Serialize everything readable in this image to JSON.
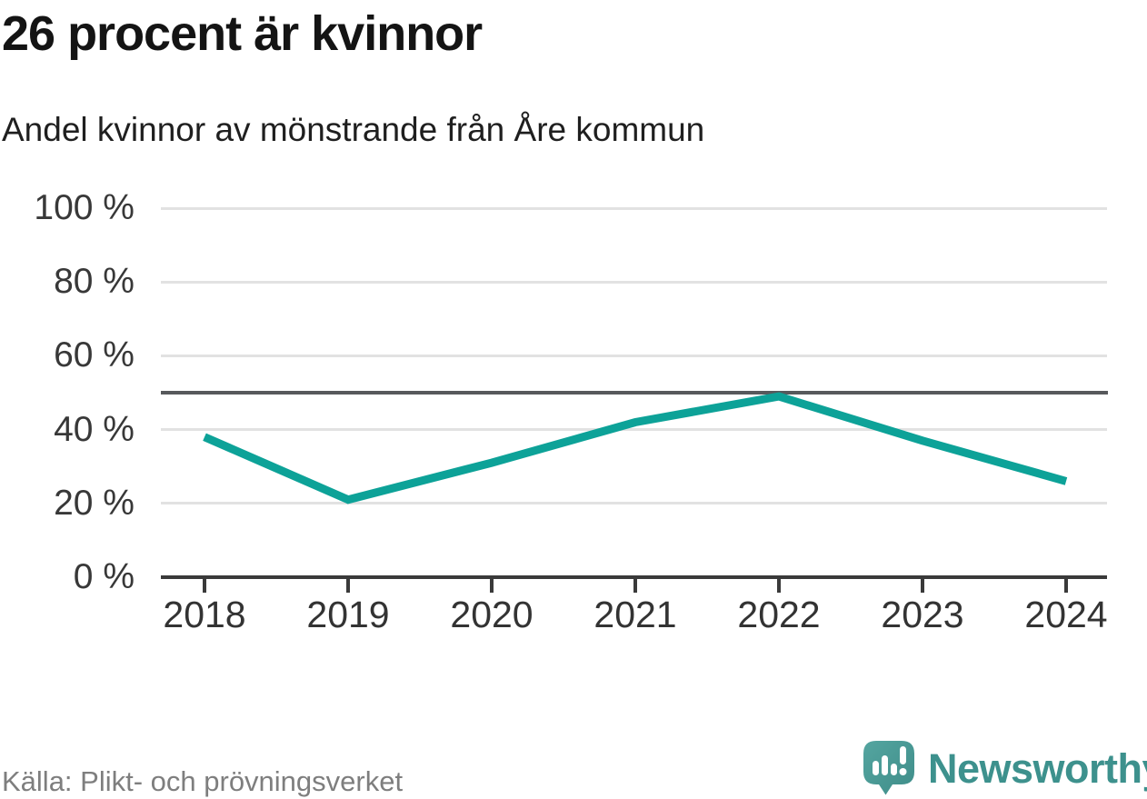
{
  "header": {
    "title": "26 procent är kvinnor",
    "subtitle": "Andel kvinnor av mönstrande från Åre kommun"
  },
  "chart_data": {
    "type": "line",
    "x": [
      2018,
      2019,
      2020,
      2021,
      2022,
      2023,
      2024
    ],
    "x_labels": [
      "2018",
      "2019",
      "2020",
      "2021",
      "2022",
      "2023",
      "2024"
    ],
    "series": [
      {
        "name": "Andel kvinnor av mönstrande",
        "values": [
          38,
          21,
          31,
          42,
          49,
          37,
          26
        ]
      }
    ],
    "unit": "%",
    "ylim": [
      0,
      100
    ],
    "yticks": [
      0,
      20,
      40,
      60,
      80,
      100
    ],
    "ytick_labels": [
      "0 %",
      "20 %",
      "40 %",
      "60 %",
      "80 %",
      "100 %"
    ],
    "reference_line": 50,
    "line_color": "#0da298",
    "grid": true,
    "legend": "none",
    "title": "26 procent är kvinnor",
    "xlabel": "",
    "ylabel": ""
  },
  "footer": {
    "source": "Källa: Plikt- och prövningsverket"
  },
  "branding": {
    "wordmark": "Newsworthy",
    "logo_icon": "speech-bubble-bar-chart-exclamation",
    "brand_color": "#3d918d",
    "logo_fill": "#4a9c98"
  }
}
